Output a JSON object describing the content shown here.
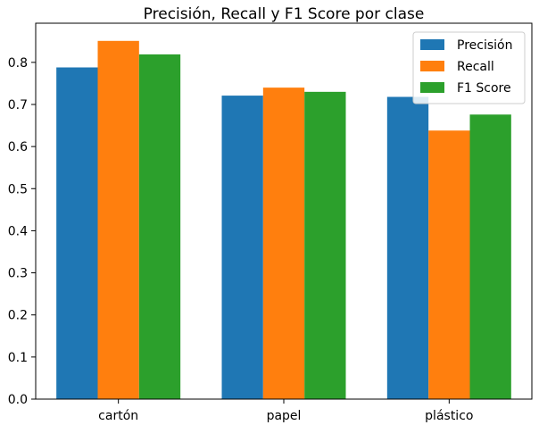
{
  "chart_data": {
    "type": "bar",
    "title": "Precisión, Recall y F1 Score por clase",
    "xlabel": "",
    "ylabel": "",
    "categories": [
      "cartón",
      "papel",
      "plástico"
    ],
    "series": [
      {
        "name": "Precisión",
        "color": "#1f77b4",
        "values": [
          0.788,
          0.721,
          0.718
        ]
      },
      {
        "name": "Recall",
        "color": "#ff7f0e",
        "values": [
          0.851,
          0.74,
          0.638
        ]
      },
      {
        "name": "F1 Score",
        "color": "#2ca02c",
        "values": [
          0.819,
          0.73,
          0.676
        ]
      }
    ],
    "ylim": [
      0,
      0.893
    ],
    "yticks": [
      0.0,
      0.1,
      0.2,
      0.3,
      0.4,
      0.5,
      0.6,
      0.7,
      0.8
    ],
    "ytick_labels": [
      "0.0",
      "0.1",
      "0.2",
      "0.3",
      "0.4",
      "0.5",
      "0.6",
      "0.7",
      "0.8"
    ],
    "grid": false,
    "legend_position": "top-right"
  }
}
